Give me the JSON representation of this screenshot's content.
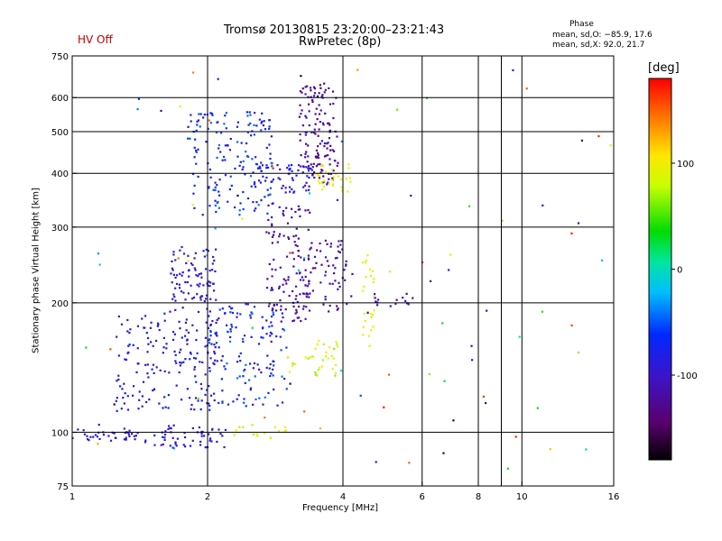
{
  "status": {
    "label": "HV Off",
    "color": "#c00000"
  },
  "header": {
    "title_line1": "Tromsø 20130815 23:20:00–23:21:43",
    "title_line2": "RwPretec (8p)"
  },
  "phase_info": {
    "heading": "Phase",
    "line_o": "mean, sd,O: −85.9, 17.6",
    "line_x": "mean, sd,X:  92.0, 21.7"
  },
  "chart_data": {
    "type": "scatter",
    "xlabel": "Frequency [MHz]",
    "ylabel": "Stationary phase Virtual Height [km]",
    "x_scale": "log",
    "y_scale": "log",
    "xlim": [
      1,
      16
    ],
    "ylim": [
      75,
      750
    ],
    "x_ticks": [
      1,
      2,
      4,
      6,
      8,
      10,
      16
    ],
    "y_ticks": [
      75,
      100,
      200,
      300,
      400,
      500,
      600,
      750
    ],
    "x_grid": [
      2,
      4,
      6,
      8,
      9,
      10,
      16
    ],
    "y_grid": [
      100,
      200,
      300,
      400,
      500,
      600
    ],
    "grid": true,
    "colorbar": {
      "unit": "[deg]",
      "ticks": [
        100,
        0,
        -100
      ],
      "range": [
        -180,
        180
      ]
    },
    "clusters": [
      {
        "f": [
          1.0,
          1.4
        ],
        "h": [
          95,
          102
        ],
        "phase": [
          -110,
          -80
        ],
        "n": 35
      },
      {
        "f": [
          1.45,
          2.2
        ],
        "h": [
          92,
          104
        ],
        "phase": [
          -110,
          -70
        ],
        "n": 55
      },
      {
        "f": [
          1.25,
          2.1
        ],
        "h": [
          112,
          190
        ],
        "phase": [
          -110,
          -60
        ],
        "n": 170
      },
      {
        "f": [
          1.65,
          2.1
        ],
        "h": [
          190,
          270
        ],
        "phase": [
          -115,
          -75
        ],
        "n": 90
      },
      {
        "f": [
          2.0,
          3.0
        ],
        "h": [
          115,
          200
        ],
        "phase": [
          -105,
          -40
        ],
        "n": 140
      },
      {
        "f": [
          2.7,
          3.4
        ],
        "h": [
          180,
          340
        ],
        "phase": [
          -130,
          -95
        ],
        "n": 110
      },
      {
        "f": [
          3.0,
          4.0
        ],
        "h": [
          135,
          165
        ],
        "phase": [
          60,
          110
        ],
        "n": 35
      },
      {
        "f": [
          3.1,
          4.2
        ],
        "h": [
          190,
          280
        ],
        "phase": [
          -130,
          -100
        ],
        "n": 80
      },
      {
        "f": [
          1.8,
          2.8
        ],
        "h": [
          320,
          560
        ],
        "phase": [
          -100,
          -40
        ],
        "n": 160
      },
      {
        "f": [
          2.5,
          3.4
        ],
        "h": [
          360,
          420
        ],
        "phase": [
          -110,
          -60
        ],
        "n": 60
      },
      {
        "f": [
          3.2,
          3.9
        ],
        "h": [
          380,
          650
        ],
        "phase": [
          -140,
          -100
        ],
        "n": 140
      },
      {
        "f": [
          3.5,
          4.2
        ],
        "h": [
          360,
          420
        ],
        "phase": [
          80,
          110
        ],
        "n": 30
      },
      {
        "f": [
          4.4,
          4.7
        ],
        "h": [
          165,
          270
        ],
        "phase": [
          80,
          105
        ],
        "n": 25
      },
      {
        "f": [
          4.6,
          5.8
        ],
        "h": [
          195,
          210
        ],
        "phase": [
          -130,
          -95
        ],
        "n": 15
      },
      {
        "f": [
          2.2,
          3.0
        ],
        "h": [
          97,
          104
        ],
        "phase": [
          70,
          110
        ],
        "n": 15
      },
      {
        "f": [
          1.0,
          16
        ],
        "h": [
          80,
          700
        ],
        "phase": [
          -180,
          180
        ],
        "n": 90
      }
    ]
  }
}
